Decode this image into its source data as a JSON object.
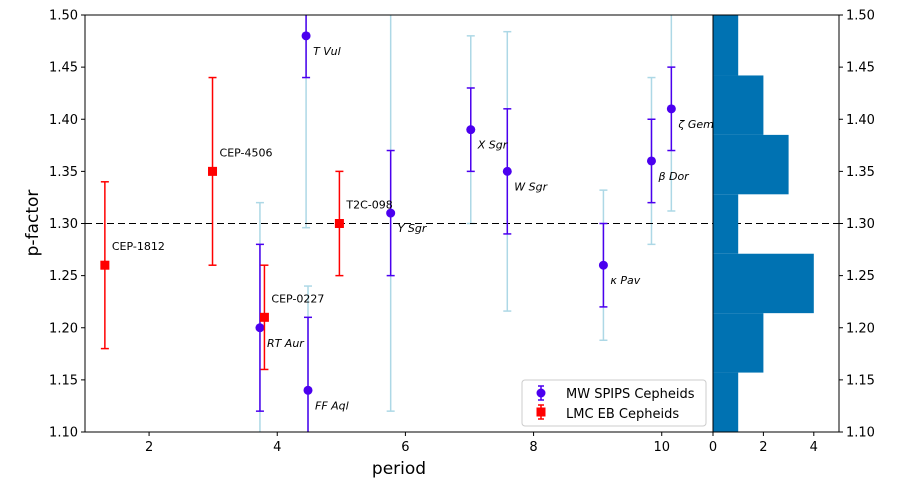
{
  "chart_data": [
    {
      "type": "scatter",
      "xlabel": "period",
      "ylabel": "p-factor",
      "xlim": [
        1.0,
        10.8
      ],
      "ylim": [
        1.1,
        1.5
      ],
      "xticks": [
        2,
        4,
        6,
        8,
        10
      ],
      "yticks": [
        1.1,
        1.15,
        1.2,
        1.25,
        1.3,
        1.35,
        1.4,
        1.45,
        1.5
      ],
      "hline": 1.3,
      "legend_position": "bottom-right",
      "colors": {
        "mw": "#4b00ef",
        "lmc": "#ff0000",
        "wide_err": "#add8e6",
        "hist": "#0072b2"
      },
      "series": [
        {
          "name": "MW SPIPS Cepheids",
          "marker": "circle",
          "points": [
            {
              "x": 4.45,
              "y": 1.48,
              "err": 0.04,
              "label": "T Vul"
            },
            {
              "x": 3.73,
              "y": 1.2,
              "err": 0.08,
              "label": "RT Aur"
            },
            {
              "x": 4.48,
              "y": 1.14,
              "err": 0.07,
              "label": "FF Aql"
            },
            {
              "x": 5.77,
              "y": 1.31,
              "err": 0.06,
              "label": "Y Sgr"
            },
            {
              "x": 7.02,
              "y": 1.39,
              "err": 0.04,
              "label": "X Sgr"
            },
            {
              "x": 7.59,
              "y": 1.35,
              "err": 0.06,
              "label": "W Sgr"
            },
            {
              "x": 9.09,
              "y": 1.26,
              "err": 0.04,
              "label": "κ Pav"
            },
            {
              "x": 9.84,
              "y": 1.36,
              "err": 0.04,
              "label": "β Dor"
            },
            {
              "x": 10.15,
              "y": 1.41,
              "err": 0.04,
              "label": "ζ Gem"
            }
          ],
          "wide_errors": [
            {
              "x": 3.73,
              "lo": 1.08,
              "hi": 1.32
            },
            {
              "x": 4.48,
              "lo": 1.08,
              "hi": 1.24
            },
            {
              "x": 4.45,
              "lo": 1.296,
              "hi": 1.52
            },
            {
              "x": 5.77,
              "lo": 1.12,
              "hi": 1.52
            },
            {
              "x": 7.02,
              "lo": 1.3,
              "hi": 1.48
            },
            {
              "x": 7.59,
              "lo": 1.216,
              "hi": 1.484
            },
            {
              "x": 9.09,
              "lo": 1.188,
              "hi": 1.332
            },
            {
              "x": 9.84,
              "lo": 1.28,
              "hi": 1.44
            },
            {
              "x": 10.15,
              "lo": 1.312,
              "hi": 1.52
            }
          ]
        },
        {
          "name": "LMC EB Cepheids",
          "marker": "square",
          "points": [
            {
              "x": 1.31,
              "y": 1.26,
              "err": 0.08,
              "label": "CEP-1812"
            },
            {
              "x": 2.99,
              "y": 1.35,
              "err": 0.09,
              "label": "CEP-4506"
            },
            {
              "x": 3.8,
              "y": 1.21,
              "err": 0.05,
              "label": "CEP-0227"
            },
            {
              "x": 4.97,
              "y": 1.3,
              "err": 0.05,
              "label": "T2C-098"
            }
          ]
        }
      ]
    },
    {
      "type": "bar",
      "orientation": "horizontal",
      "xlim": [
        0,
        5
      ],
      "xticks": [
        0,
        2,
        4
      ],
      "bins": [
        {
          "lo": 1.1,
          "hi": 1.157,
          "count": 1
        },
        {
          "lo": 1.157,
          "hi": 1.214,
          "count": 2
        },
        {
          "lo": 1.214,
          "hi": 1.271,
          "count": 4
        },
        {
          "lo": 1.271,
          "hi": 1.328,
          "count": 1
        },
        {
          "lo": 1.328,
          "hi": 1.385,
          "count": 3
        },
        {
          "lo": 1.385,
          "hi": 1.442,
          "count": 2
        },
        {
          "lo": 1.442,
          "hi": 1.5,
          "count": 1
        }
      ]
    }
  ]
}
